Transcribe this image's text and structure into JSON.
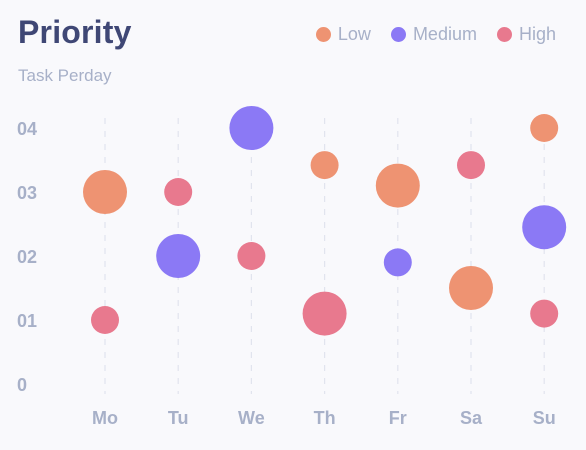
{
  "title": "Priority",
  "subtitle": "Task Perday",
  "legend": [
    {
      "label": "Low",
      "color": "#ee9372"
    },
    {
      "label": "Medium",
      "color": "#8b79f5"
    },
    {
      "label": "High",
      "color": "#e8798e"
    }
  ],
  "chart_data": {
    "type": "scatter",
    "title": "Priority",
    "subtitle": "Task Perday",
    "categories": [
      "Mo",
      "Tu",
      "We",
      "Th",
      "Fr",
      "Sa",
      "Su"
    ],
    "y_ticks": [
      "0",
      "01",
      "02",
      "03",
      "04"
    ],
    "ylim": [
      0,
      4
    ],
    "grid": "vertical dashed",
    "legend_position": "top-right",
    "series": [
      {
        "name": "Low",
        "color": "#ee9372",
        "points": [
          {
            "x": "Mo",
            "y": 3.0,
            "size": 22
          },
          {
            "x": "Th",
            "y": 3.42,
            "size": 14
          },
          {
            "x": "Fr",
            "y": 3.1,
            "size": 22
          },
          {
            "x": "Sa",
            "y": 1.5,
            "size": 22
          },
          {
            "x": "Su",
            "y": 4.0,
            "size": 14
          }
        ]
      },
      {
        "name": "Medium",
        "color": "#8b79f5",
        "points": [
          {
            "x": "Tu",
            "y": 2.0,
            "size": 22
          },
          {
            "x": "We",
            "y": 4.0,
            "size": 22
          },
          {
            "x": "Fr",
            "y": 1.9,
            "size": 14
          },
          {
            "x": "Su",
            "y": 2.45,
            "size": 22
          }
        ]
      },
      {
        "name": "High",
        "color": "#e8798e",
        "points": [
          {
            "x": "Mo",
            "y": 1.0,
            "size": 14
          },
          {
            "x": "Tu",
            "y": 3.0,
            "size": 14
          },
          {
            "x": "We",
            "y": 2.0,
            "size": 14
          },
          {
            "x": "Th",
            "y": 1.1,
            "size": 22
          },
          {
            "x": "Sa",
            "y": 3.42,
            "size": 14
          },
          {
            "x": "Su",
            "y": 1.1,
            "size": 14
          }
        ]
      }
    ]
  }
}
